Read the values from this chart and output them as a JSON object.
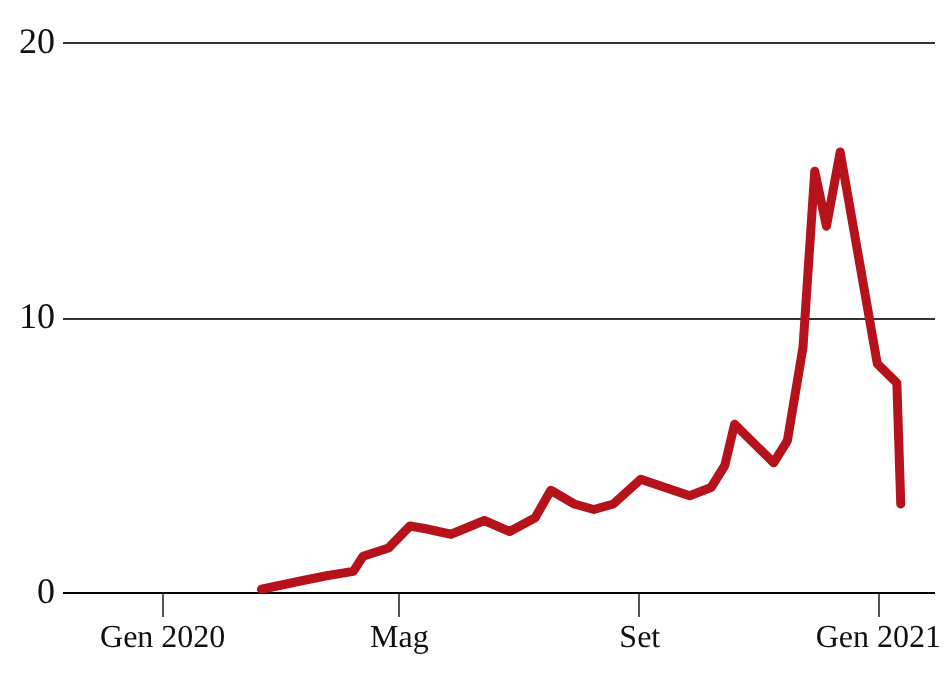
{
  "chart_data": {
    "type": "line",
    "x": [
      "2020-02-21",
      "2020-03-12",
      "2020-03-26",
      "2020-04-08",
      "2020-04-13",
      "2020-04-26",
      "2020-05-07",
      "2020-05-15",
      "2020-05-28",
      "2020-06-14",
      "2020-06-27",
      "2020-07-10",
      "2020-07-18",
      "2020-07-30",
      "2020-08-09",
      "2020-08-19",
      "2020-09-02",
      "2020-09-27",
      "2020-10-08",
      "2020-10-15",
      "2020-10-20",
      "2020-11-09",
      "2020-11-16",
      "2020-11-24",
      "2020-11-30",
      "2020-12-06",
      "2020-12-13",
      "2021-01-01",
      "2021-01-11",
      "2021-01-13"
    ],
    "series": [
      {
        "color": "#b5121b",
        "values": [
          0.1,
          0.4,
          0.6,
          0.75,
          1.3,
          1.6,
          2.4,
          2.3,
          2.1,
          2.6,
          2.2,
          2.7,
          3.7,
          3.2,
          3.0,
          3.2,
          4.1,
          3.5,
          3.8,
          4.6,
          6.1,
          4.7,
          5.5,
          8.9,
          15.3,
          13.3,
          16.0,
          8.3,
          7.6,
          3.2
        ]
      }
    ],
    "xlim": [
      "2019-11-11",
      "2021-01-30"
    ],
    "xticks": [
      {
        "value": "2020-01-01",
        "label": "Gen 2020"
      },
      {
        "value": "2020-05-01",
        "label": "Mag"
      },
      {
        "value": "2020-09-01",
        "label": "Set"
      },
      {
        "value": "2021-01-01",
        "label": "Gen 2021"
      }
    ],
    "ylim": [
      0,
      20
    ],
    "yticks": [
      0,
      10,
      20
    ],
    "grid": "y",
    "line_style": "solid",
    "marker": "none"
  }
}
